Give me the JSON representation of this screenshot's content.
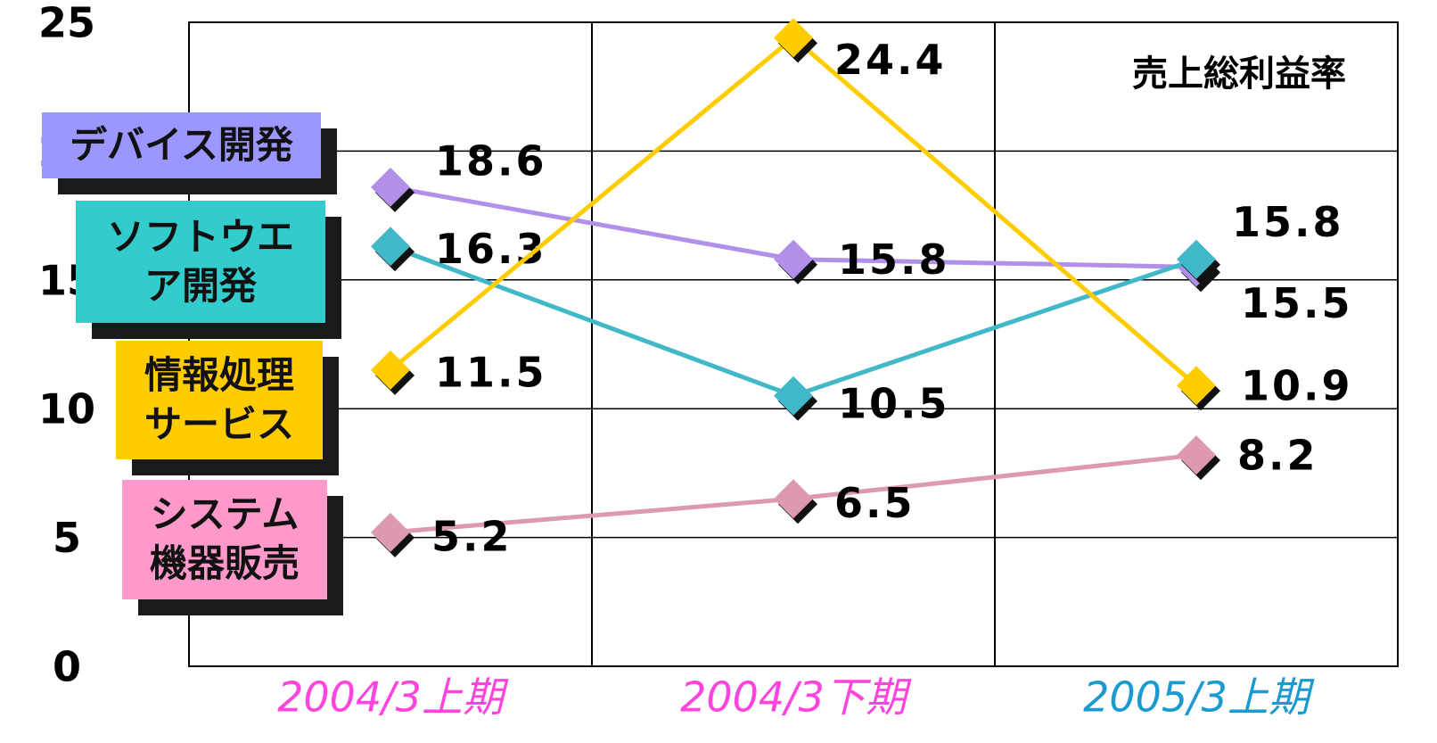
{
  "chart_data": {
    "type": "line",
    "annotation": "売上総利益率",
    "categories": [
      "2004/3上期",
      "2004/3下期",
      "2005/3上期"
    ],
    "category_colors": [
      "#ff44dd",
      "#ff44dd",
      "#1a9ad0"
    ],
    "series": [
      {
        "name": "デバイス開発",
        "color": "#b090e8",
        "legend_color": "#9b97ff",
        "values": [
          18.6,
          15.8,
          15.5
        ]
      },
      {
        "name": "ソフトウエア開発",
        "color": "#40b8c8",
        "legend_color": "#33cccc",
        "values": [
          16.3,
          10.5,
          15.8
        ]
      },
      {
        "name": "情報処理サービス",
        "color": "#ffcc00",
        "legend_color": "#ffcc00",
        "values": [
          11.5,
          24.4,
          10.9
        ]
      },
      {
        "name": "システム機器販売",
        "color": "#dd99b0",
        "legend_color": "#ff99cc",
        "values": [
          5.2,
          6.5,
          8.2
        ]
      }
    ],
    "ylim": [
      0,
      25
    ],
    "yticks": [
      0,
      5,
      10,
      15,
      20,
      25
    ],
    "grid": true
  }
}
